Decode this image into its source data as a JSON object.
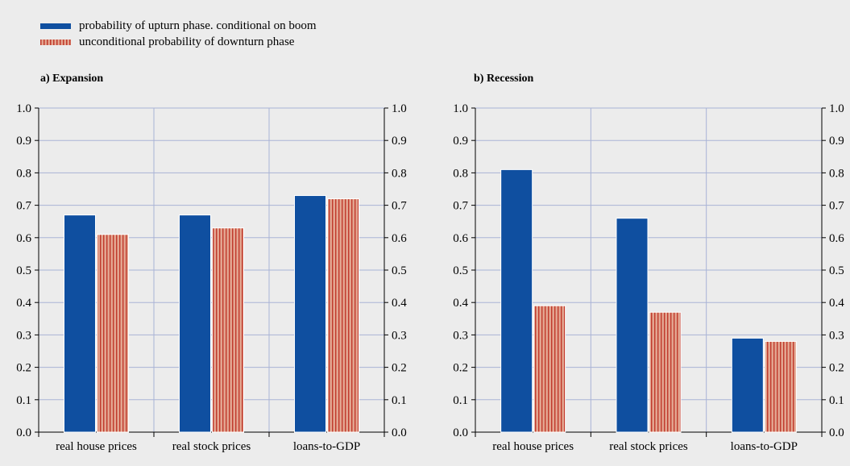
{
  "legend": {
    "items": [
      {
        "label": "probability of upturn phase. conditional on boom",
        "color": "#0f4fa0"
      },
      {
        "label": "unconditional probability of downturn phase",
        "color": "#e3a590"
      }
    ]
  },
  "chart_data": [
    {
      "type": "bar",
      "title": "a) Expansion",
      "categories": [
        "real house prices",
        "real stock prices",
        "loans-to-GDP"
      ],
      "series": [
        {
          "name": "probability of upturn phase. conditional on boom",
          "values": [
            0.67,
            0.67,
            0.73
          ],
          "color": "#0f4fa0"
        },
        {
          "name": "unconditional probability of downturn phase",
          "values": [
            0.61,
            0.63,
            0.72
          ],
          "color": "#e3a590"
        }
      ],
      "yticks": [
        "0.0",
        "0.1",
        "0.2",
        "0.3",
        "0.4",
        "0.5",
        "0.6",
        "0.7",
        "0.8",
        "0.9",
        "1.0"
      ],
      "ylim": [
        0,
        1.0
      ],
      "grid": true,
      "legend_position": "top-left"
    },
    {
      "type": "bar",
      "title": "b) Recession",
      "categories": [
        "real house prices",
        "real stock prices",
        "loans-to-GDP"
      ],
      "series": [
        {
          "name": "probability of upturn phase. conditional on boom",
          "values": [
            0.81,
            0.66,
            0.29
          ],
          "color": "#0f4fa0"
        },
        {
          "name": "unconditional probability of downturn phase",
          "values": [
            0.39,
            0.37,
            0.28
          ],
          "color": "#e3a590"
        }
      ],
      "yticks": [
        "0.0",
        "0.1",
        "0.2",
        "0.3",
        "0.4",
        "0.5",
        "0.6",
        "0.7",
        "0.8",
        "0.9",
        "1.0"
      ],
      "ylim": [
        0,
        1.0
      ],
      "grid": true,
      "legend_position": "top-left"
    }
  ]
}
